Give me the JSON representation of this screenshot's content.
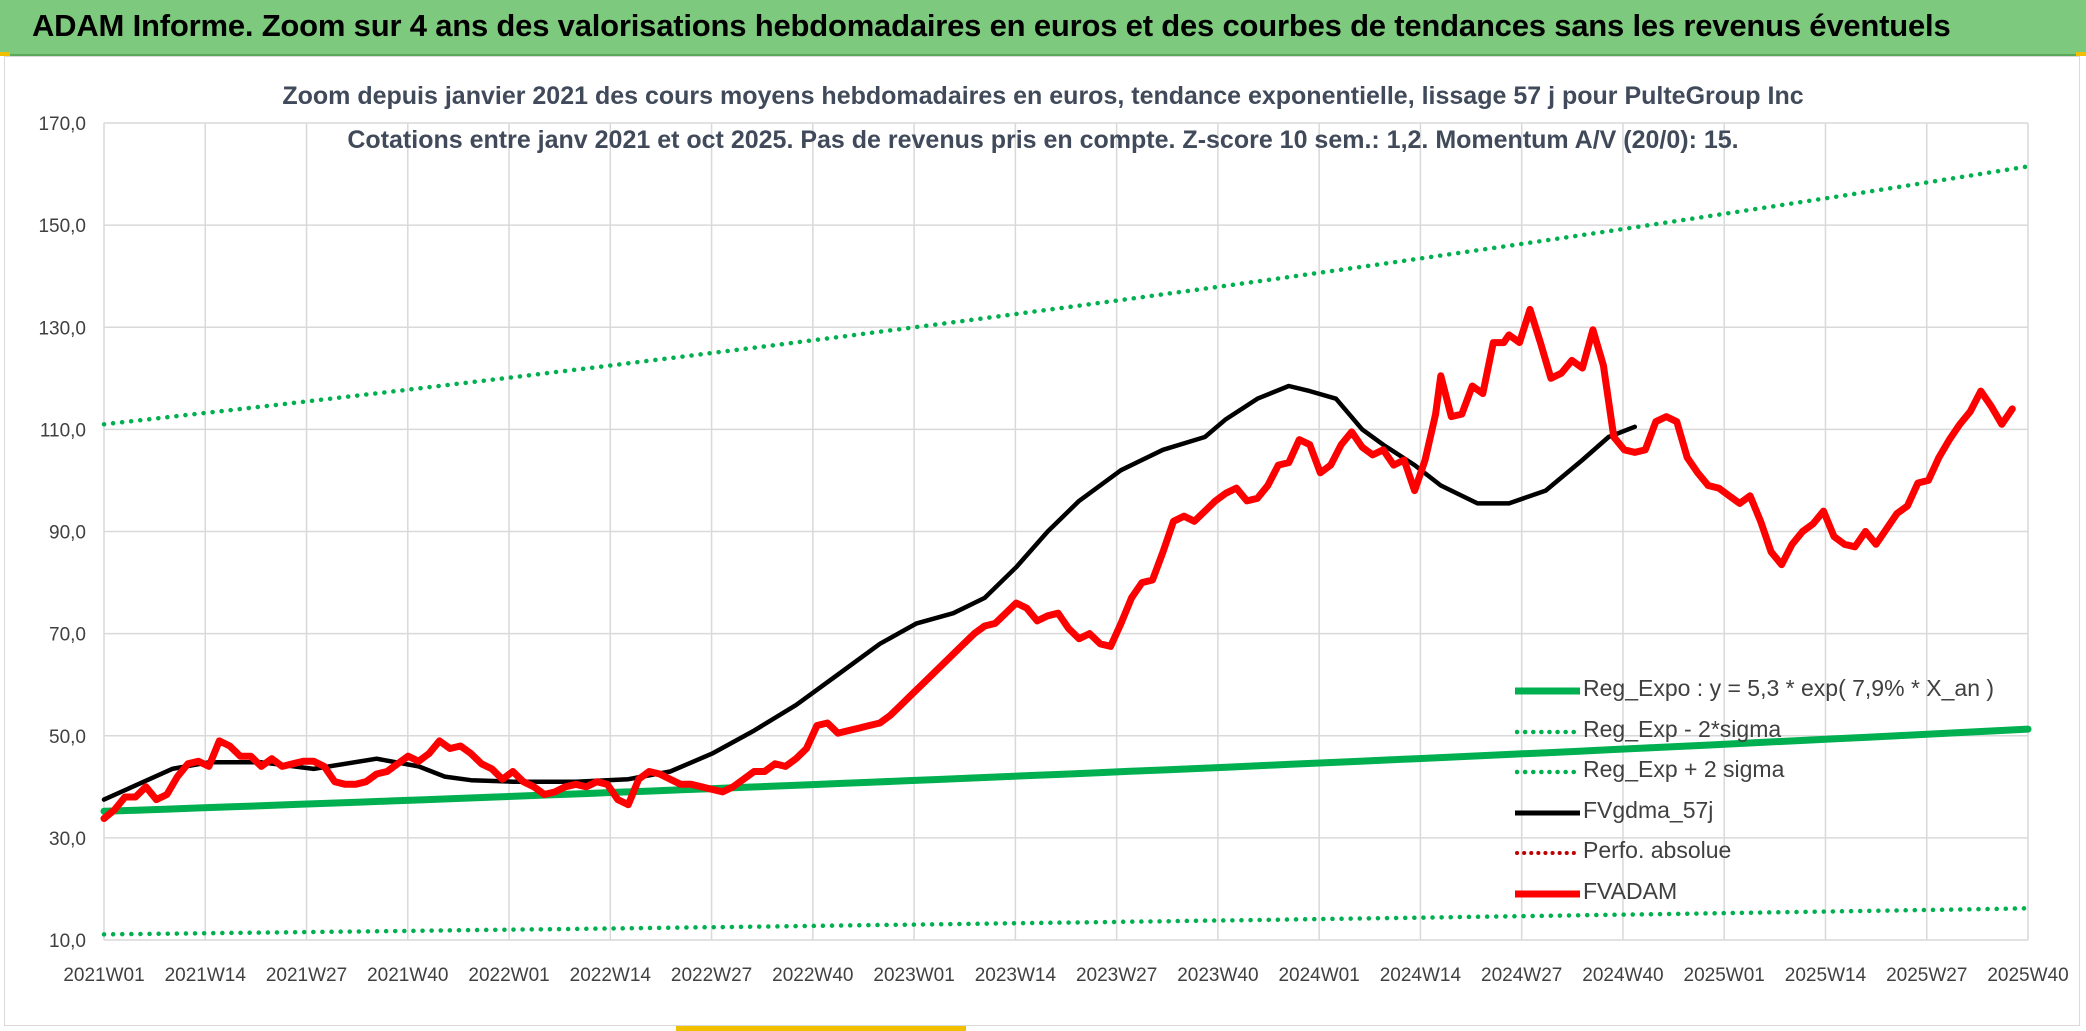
{
  "header": {
    "title": "ADAM Informe. Zoom sur 4 ans des valorisations hebdomadaires en euros et des courbes de tendances sans les revenus éventuels"
  },
  "colors": {
    "banner": "#7dc97d",
    "reg_expo": "#00b050",
    "fvgdma": "#000000",
    "fvadam": "#ff0000",
    "perfo": "#c00000",
    "grid": "#d9d9d9",
    "accent": "#f0c000"
  },
  "chart_data": {
    "type": "line",
    "title": "Zoom depuis janvier 2021 des cours moyens hebdomadaires en euros, tendance exponentielle, lissage 57 j pour PulteGroup Inc",
    "subtitle": "Cotations entre janv 2021 et oct 2025. Pas de revenus pris en compte. Z-score 10 sem.: 1,2. Momentum A/V (20/0): 15.",
    "xlabel": "",
    "ylabel": "",
    "ylim": [
      10,
      170
    ],
    "y_ticks": [
      "10,0",
      "30,0",
      "50,0",
      "70,0",
      "90,0",
      "110,0",
      "130,0",
      "150,0",
      "170,0"
    ],
    "x_tick_labels": [
      "2021W01",
      "2021W14",
      "2021W27",
      "2021W40",
      "2022W01",
      "2022W14",
      "2022W27",
      "2022W40",
      "2023W01",
      "2023W14",
      "2023W27",
      "2023W40",
      "2024W01",
      "2024W14",
      "2024W27",
      "2024W40",
      "2025W01",
      "2025W14",
      "2025W27",
      "2025W40"
    ],
    "x_week_index_range": [
      0,
      247
    ],
    "grid": true,
    "legend_position": "bottom-right",
    "series": [
      {
        "name": "Reg_Expo : y = 5,3 * exp( 7,9% *  X_an )",
        "style": "solid",
        "color": "#00b050",
        "points": [
          [
            0,
            35.2
          ],
          [
            247,
            51.3
          ]
        ]
      },
      {
        "name": "Reg_Exp - 2*sigma",
        "style": "dotted",
        "color": "#00b050",
        "points": [
          [
            0,
            11.1
          ],
          [
            247,
            16.2
          ]
        ]
      },
      {
        "name": "Reg_Exp + 2 sigma",
        "style": "dotted",
        "color": "#00b050",
        "points": [
          [
            0,
            111.0
          ],
          [
            247,
            161.5
          ]
        ]
      },
      {
        "name": "FVgdma_57j",
        "style": "solid",
        "color": "#000000",
        "points": [
          [
            0,
            37.5
          ],
          [
            13,
            43.5
          ],
          [
            20,
            44.8
          ],
          [
            30,
            44.8
          ],
          [
            40,
            43.5
          ],
          [
            52,
            45.5
          ],
          [
            60,
            44.0
          ],
          [
            65,
            42.0
          ],
          [
            70,
            41.3
          ],
          [
            78,
            41.0
          ],
          [
            90,
            41.0
          ],
          [
            100,
            41.5
          ],
          [
            108,
            43.0
          ],
          [
            116,
            46.5
          ],
          [
            124,
            51.0
          ],
          [
            132,
            56.0
          ],
          [
            140,
            62.0
          ],
          [
            148,
            68.0
          ],
          [
            155,
            72.0
          ],
          [
            162,
            74.0
          ],
          [
            168,
            77.0
          ],
          [
            174,
            83.0
          ],
          [
            180,
            90.0
          ],
          [
            186,
            96.0
          ],
          [
            194,
            102.0
          ],
          [
            202,
            106.0
          ],
          [
            210,
            108.5
          ],
          [
            214,
            112.0
          ],
          [
            220,
            116.0
          ],
          [
            226,
            118.5
          ],
          [
            230,
            117.5
          ],
          [
            235,
            116.0
          ],
          [
            240,
            110.0
          ],
          [
            244,
            107.0
          ],
          [
            250,
            103.0
          ],
          [
            255,
            99.0
          ],
          [
            262,
            95.5
          ],
          [
            268,
            95.5
          ],
          [
            275,
            98.0
          ],
          [
            282,
            104.0
          ],
          [
            287,
            108.5
          ],
          [
            292,
            110.5
          ]
        ]
      },
      {
        "name": "Perfo. absolue",
        "style": "dotted",
        "color": "#c00000",
        "points": []
      },
      {
        "name": "FVADAM",
        "style": "solid",
        "color": "#ff0000",
        "points": [
          [
            0,
            33.8
          ],
          [
            2,
            35.5
          ],
          [
            4,
            38.0
          ],
          [
            6,
            38.0
          ],
          [
            8,
            40.0
          ],
          [
            10,
            37.5
          ],
          [
            12,
            38.5
          ],
          [
            14,
            42.0
          ],
          [
            16,
            44.5
          ],
          [
            18,
            45.0
          ],
          [
            20,
            44.0
          ],
          [
            22,
            49.0
          ],
          [
            24,
            48.0
          ],
          [
            26,
            46.0
          ],
          [
            28,
            46.0
          ],
          [
            30,
            44.0
          ],
          [
            32,
            45.5
          ],
          [
            34,
            44.0
          ],
          [
            36,
            44.5
          ],
          [
            38,
            45.0
          ],
          [
            40,
            45.0
          ],
          [
            42,
            44.0
          ],
          [
            44,
            41.0
          ],
          [
            46,
            40.5
          ],
          [
            48,
            40.5
          ],
          [
            50,
            41.0
          ],
          [
            52,
            42.5
          ],
          [
            54,
            43.0
          ],
          [
            56,
            44.5
          ],
          [
            58,
            46.0
          ],
          [
            60,
            45.0
          ],
          [
            62,
            46.5
          ],
          [
            64,
            49.0
          ],
          [
            66,
            47.5
          ],
          [
            68,
            48.0
          ],
          [
            70,
            46.5
          ],
          [
            72,
            44.5
          ],
          [
            74,
            43.5
          ],
          [
            76,
            41.5
          ],
          [
            78,
            43.0
          ],
          [
            80,
            41.0
          ],
          [
            82,
            40.0
          ],
          [
            84,
            38.5
          ],
          [
            86,
            39.0
          ],
          [
            88,
            40.0
          ],
          [
            90,
            40.5
          ],
          [
            92,
            40.0
          ],
          [
            94,
            41.0
          ],
          [
            96,
            40.5
          ],
          [
            98,
            37.5
          ],
          [
            100,
            36.5
          ],
          [
            102,
            41.5
          ],
          [
            104,
            43.0
          ],
          [
            106,
            42.5
          ],
          [
            108,
            41.5
          ],
          [
            110,
            40.5
          ],
          [
            112,
            40.5
          ],
          [
            114,
            40.0
          ],
          [
            116,
            39.5
          ],
          [
            118,
            39.0
          ],
          [
            120,
            40.0
          ],
          [
            122,
            41.5
          ],
          [
            124,
            43.0
          ],
          [
            126,
            43.0
          ],
          [
            128,
            44.5
          ],
          [
            130,
            44.0
          ],
          [
            132,
            45.5
          ],
          [
            134,
            47.5
          ],
          [
            136,
            52.0
          ],
          [
            138,
            52.5
          ],
          [
            140,
            50.5
          ],
          [
            142,
            51.0
          ],
          [
            144,
            51.5
          ],
          [
            146,
            52.0
          ],
          [
            148,
            52.5
          ],
          [
            150,
            54.0
          ],
          [
            152,
            56.0
          ],
          [
            154,
            58.0
          ],
          [
            156,
            60.0
          ],
          [
            158,
            62.0
          ],
          [
            160,
            64.0
          ],
          [
            162,
            66.0
          ],
          [
            164,
            68.0
          ],
          [
            166,
            70.0
          ],
          [
            168,
            71.5
          ],
          [
            170,
            72.0
          ],
          [
            172,
            74.0
          ],
          [
            174,
            76.0
          ],
          [
            176,
            75.0
          ],
          [
            178,
            72.5
          ],
          [
            180,
            73.5
          ],
          [
            182,
            74.0
          ],
          [
            184,
            71.0
          ],
          [
            186,
            69.0
          ],
          [
            188,
            70.0
          ],
          [
            190,
            68.0
          ],
          [
            192,
            67.5
          ],
          [
            194,
            72.0
          ],
          [
            196,
            77.0
          ],
          [
            198,
            80.0
          ],
          [
            200,
            80.5
          ],
          [
            202,
            86.0
          ],
          [
            204,
            92.0
          ],
          [
            206,
            93.0
          ],
          [
            208,
            92.0
          ],
          [
            210,
            94.0
          ],
          [
            212,
            96.0
          ],
          [
            214,
            97.5
          ],
          [
            216,
            98.5
          ],
          [
            218,
            96.0
          ],
          [
            220,
            96.5
          ],
          [
            222,
            99.0
          ],
          [
            224,
            103.0
          ],
          [
            226,
            103.5
          ],
          [
            228,
            108.0
          ],
          [
            230,
            107.0
          ],
          [
            232,
            101.5
          ],
          [
            234,
            103.0
          ],
          [
            236,
            107.0
          ],
          [
            238,
            109.5
          ],
          [
            240,
            106.5
          ],
          [
            242,
            105.0
          ],
          [
            244,
            106.0
          ],
          [
            246,
            103.0
          ],
          [
            248,
            104.0
          ],
          [
            250,
            98.0
          ],
          [
            252,
            104.0
          ],
          [
            254,
            113.0
          ],
          [
            255,
            120.5
          ],
          [
            257,
            112.5
          ],
          [
            259,
            113.0
          ],
          [
            261,
            118.5
          ],
          [
            263,
            117.0
          ],
          [
            265,
            127.0
          ],
          [
            267,
            127.0
          ],
          [
            268,
            128.5
          ],
          [
            270,
            127.0
          ],
          [
            272,
            133.5
          ],
          [
            274,
            127.0
          ],
          [
            276,
            120.0
          ],
          [
            278,
            121.0
          ],
          [
            280,
            123.5
          ],
          [
            282,
            122.0
          ],
          [
            284,
            129.5
          ],
          [
            286,
            122.5
          ],
          [
            288,
            108.5
          ],
          [
            290,
            106.0
          ],
          [
            292,
            105.5
          ],
          [
            294,
            106.0
          ],
          [
            296,
            111.5
          ],
          [
            298,
            112.5
          ],
          [
            300,
            111.5
          ],
          [
            302,
            104.5
          ],
          [
            304,
            101.5
          ],
          [
            306,
            99.0
          ],
          [
            308,
            98.5
          ],
          [
            310,
            97.0
          ],
          [
            312,
            95.5
          ],
          [
            314,
            97.0
          ],
          [
            316,
            92.0
          ],
          [
            318,
            86.0
          ],
          [
            320,
            83.5
          ],
          [
            322,
            87.5
          ],
          [
            324,
            90.0
          ],
          [
            326,
            91.5
          ],
          [
            328,
            94.0
          ],
          [
            330,
            89.0
          ],
          [
            332,
            87.5
          ],
          [
            334,
            87.0
          ],
          [
            336,
            90.0
          ],
          [
            338,
            87.5
          ],
          [
            340,
            90.5
          ],
          [
            342,
            93.5
          ],
          [
            344,
            95.0
          ],
          [
            346,
            99.5
          ],
          [
            348,
            100.0
          ],
          [
            350,
            104.5
          ],
          [
            352,
            108.0
          ],
          [
            354,
            111.0
          ],
          [
            356,
            113.5
          ],
          [
            358,
            117.5
          ],
          [
            360,
            114.5
          ],
          [
            362,
            111.0
          ],
          [
            364,
            114.0
          ]
        ]
      }
    ]
  }
}
